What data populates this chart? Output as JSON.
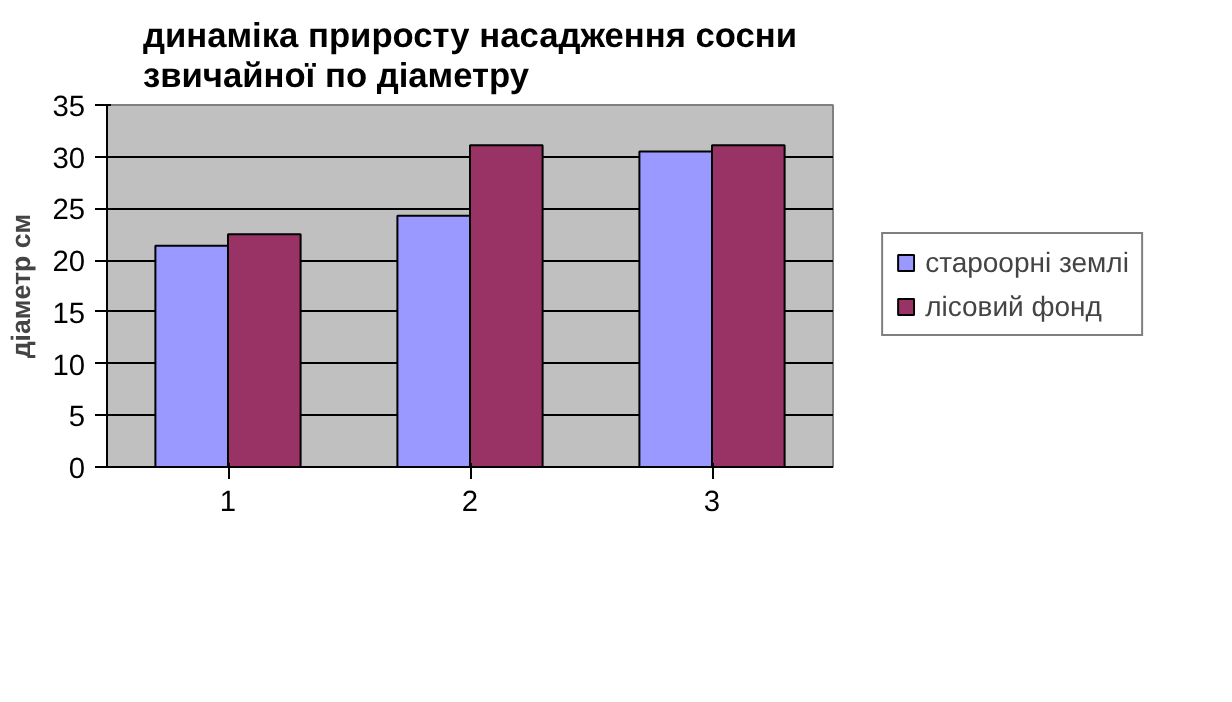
{
  "chart_data": {
    "type": "bar",
    "title": "динаміка приросту насадження сосни звичайної  по діаметру",
    "ylabel": "діаметр см",
    "categories": [
      "1",
      "2",
      "3"
    ],
    "series": [
      {
        "name": "староорні землі",
        "color": "#9999ff",
        "values": [
          21.4,
          24.3,
          30.5
        ]
      },
      {
        "name": "лісовий фонд",
        "color": "#993366",
        "values": [
          22.5,
          31.1,
          31.1
        ]
      }
    ],
    "ylim": [
      0,
      35
    ],
    "yticks": [
      0,
      5,
      10,
      15,
      20,
      25,
      30,
      35
    ],
    "grid": "y",
    "legend": "right"
  }
}
